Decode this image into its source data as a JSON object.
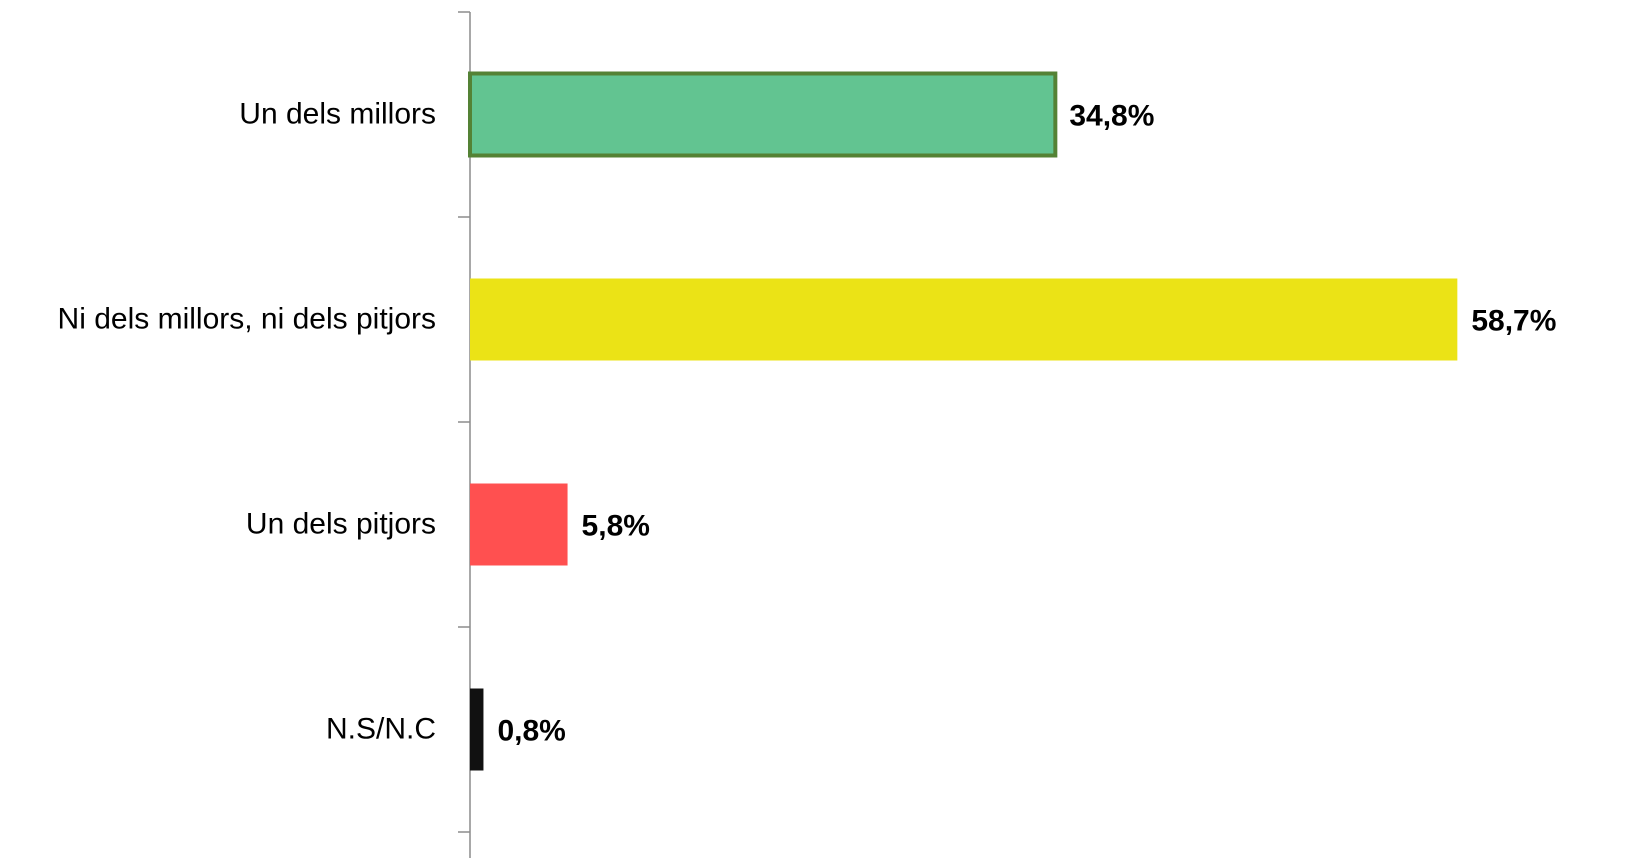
{
  "chart_data": {
    "type": "bar",
    "orientation": "horizontal",
    "categories": [
      "Un dels millors",
      "Ni dels millors, ni dels pitjors",
      "Un dels pitjors",
      "N.S/N.C"
    ],
    "values": [
      34.8,
      58.7,
      5.8,
      0.8
    ],
    "value_labels": [
      "34,8%",
      "58,7%",
      "5,8%",
      "0,8%"
    ],
    "colors": [
      "#62c491",
      "#ebe316",
      "#ff5050",
      "#111111"
    ],
    "edgecolors": [
      "#548235",
      null,
      null,
      null
    ]
  }
}
